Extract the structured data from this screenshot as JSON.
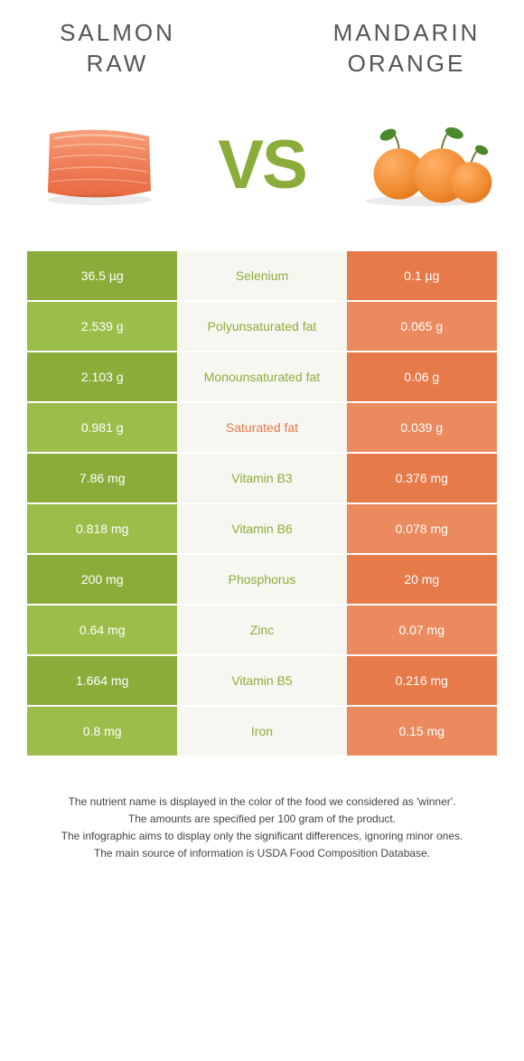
{
  "colors": {
    "salmon_bg": "#8aad3a",
    "orange_bg": "#e77a49",
    "mid_bg": "#f7f7f2",
    "row_alt_salmon": "#9bbd4a",
    "row_alt_orange": "#ea8a5e",
    "vs_color": "#8aad3a",
    "text_salmon": "#8aad3a",
    "text_orange": "#e77a49"
  },
  "header": {
    "left_title_line1": "SALMON",
    "left_title_line2": "RAW",
    "right_title_line1": "MANDARIN",
    "right_title_line2": "ORANGE",
    "vs": "VS"
  },
  "rows": [
    {
      "left": "36.5 µg",
      "mid": "Selenium",
      "right": "0.1 µg",
      "winner": "salmon"
    },
    {
      "left": "2.539 g",
      "mid": "Polyunsaturated fat",
      "right": "0.065 g",
      "winner": "salmon"
    },
    {
      "left": "2.103 g",
      "mid": "Monounsaturated fat",
      "right": "0.06 g",
      "winner": "salmon"
    },
    {
      "left": "0.981 g",
      "mid": "Saturated fat",
      "right": "0.039 g",
      "winner": "orange"
    },
    {
      "left": "7.86 mg",
      "mid": "Vitamin B3",
      "right": "0.376 mg",
      "winner": "salmon"
    },
    {
      "left": "0.818 mg",
      "mid": "Vitamin B6",
      "right": "0.078 mg",
      "winner": "salmon"
    },
    {
      "left": "200 mg",
      "mid": "Phosphorus",
      "right": "20 mg",
      "winner": "salmon"
    },
    {
      "left": "0.64 mg",
      "mid": "Zinc",
      "right": "0.07 mg",
      "winner": "salmon"
    },
    {
      "left": "1.664 mg",
      "mid": "Vitamin B5",
      "right": "0.216 mg",
      "winner": "salmon"
    },
    {
      "left": "0.8 mg",
      "mid": "Iron",
      "right": "0.15 mg",
      "winner": "salmon"
    }
  ],
  "footer": {
    "line1": "The nutrient name is displayed in the color of the food we considered as 'winner'.",
    "line2": "The amounts are specified per 100 gram of the product.",
    "line3": "The infographic aims to display only the significant differences, ignoring minor ones.",
    "line4": "The main source of information is USDA Food Composition Database."
  }
}
